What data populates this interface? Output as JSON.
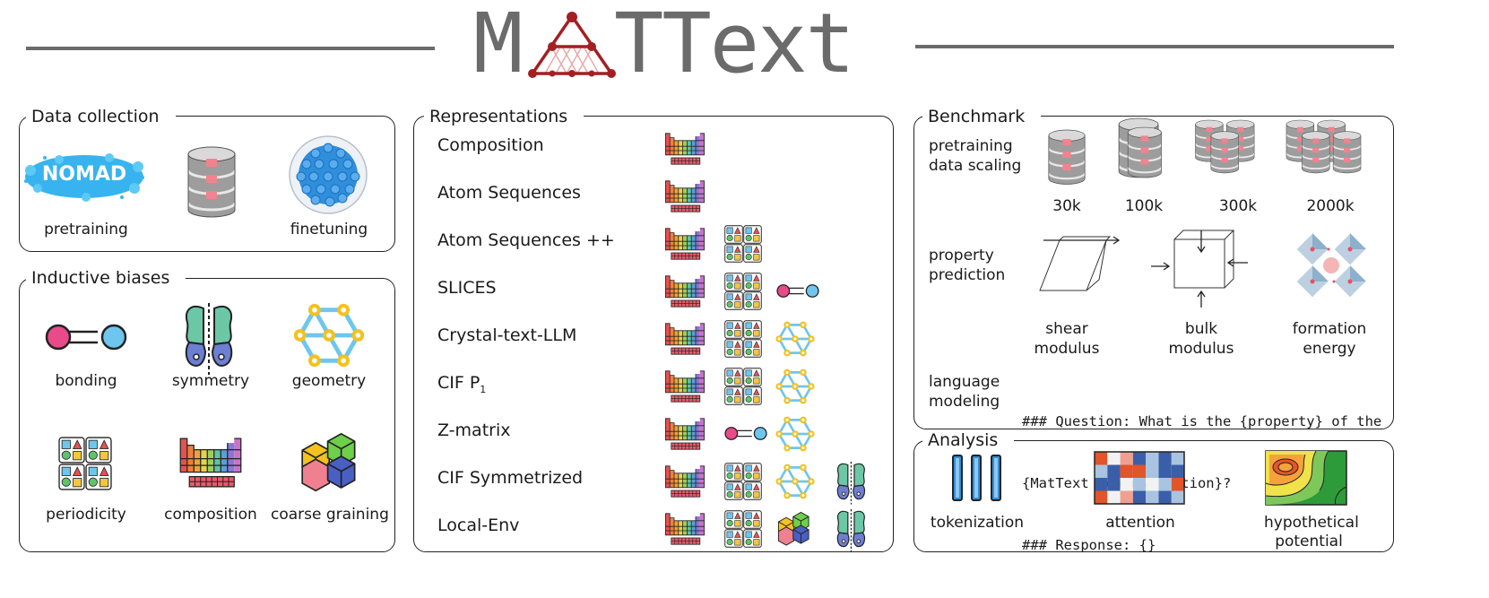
{
  "header": {
    "title_prefix": "M",
    "title_suffix": "TText"
  },
  "data_collection": {
    "title": "Data collection",
    "logo_text": "NOMAD",
    "items": [
      {
        "label": "pretraining"
      },
      {
        "label": "finetuning"
      }
    ]
  },
  "inductive_biases": {
    "title": "Inductive biases",
    "items": [
      {
        "label": "bonding",
        "icon": "bond-icon"
      },
      {
        "label": "symmetry",
        "icon": "symmetry-icon"
      },
      {
        "label": "geometry",
        "icon": "geometry-icon"
      },
      {
        "label": "periodicity",
        "icon": "periodicity-icon"
      },
      {
        "label": "composition",
        "icon": "composition-icon"
      },
      {
        "label": "coarse graining",
        "icon": "cubes-icon"
      }
    ]
  },
  "representations": {
    "title": "Representations",
    "rows": [
      {
        "label": "Composition",
        "icons": [
          "composition"
        ]
      },
      {
        "label": "Atom Sequences",
        "icons": [
          "composition"
        ]
      },
      {
        "label": "Atom Sequences ++",
        "icons": [
          "composition",
          "periodicity"
        ]
      },
      {
        "label": "SLICES",
        "icons": [
          "composition",
          "periodicity",
          "bonding"
        ]
      },
      {
        "label": "Crystal-text-LLM",
        "icons": [
          "composition",
          "periodicity",
          "geometry"
        ]
      },
      {
        "label": "CIF P",
        "sub": "1",
        "icons": [
          "composition",
          "periodicity",
          "geometry"
        ]
      },
      {
        "label": "Z-matrix",
        "icons": [
          "composition",
          "bonding",
          "geometry"
        ]
      },
      {
        "label": "CIF Symmetrized",
        "icons": [
          "composition",
          "periodicity",
          "geometry",
          "symmetry"
        ]
      },
      {
        "label": "Local-Env",
        "icons": [
          "composition",
          "periodicity",
          "coarse",
          "symmetry"
        ]
      }
    ]
  },
  "benchmark": {
    "title": "Benchmark",
    "scaling_label_1": "pretraining",
    "scaling_label_2": "data scaling",
    "scaling": [
      {
        "label": "30k"
      },
      {
        "label": "100k"
      },
      {
        "label": "300k"
      },
      {
        "label": "2000k"
      }
    ],
    "property_label_1": "property",
    "property_label_2": "prediction",
    "properties": [
      {
        "line1": "shear",
        "line2": "modulus"
      },
      {
        "line1": "bulk",
        "line2": "modulus"
      },
      {
        "line1": "formation",
        "line2": "energy"
      }
    ],
    "lm_label_1": "language",
    "lm_label_2": "modeling",
    "prompt_line_1": "### Question: What is the {property} of the",
    "prompt_line_2": "{MatText Representation}?",
    "prompt_line_3": "### Response: {}"
  },
  "analysis": {
    "title": "Analysis",
    "items": [
      {
        "line1": "tokenization",
        "line2": ""
      },
      {
        "line1": "attention",
        "line2": ""
      },
      {
        "line1": "hypothetical",
        "line2": "potential"
      }
    ]
  },
  "colors": {
    "accent": "#a41e22",
    "text_gray": "#6b6b6b",
    "pink": "#e84a8a",
    "blue": "#6ec6ee",
    "yellow": "#f3c21f"
  }
}
